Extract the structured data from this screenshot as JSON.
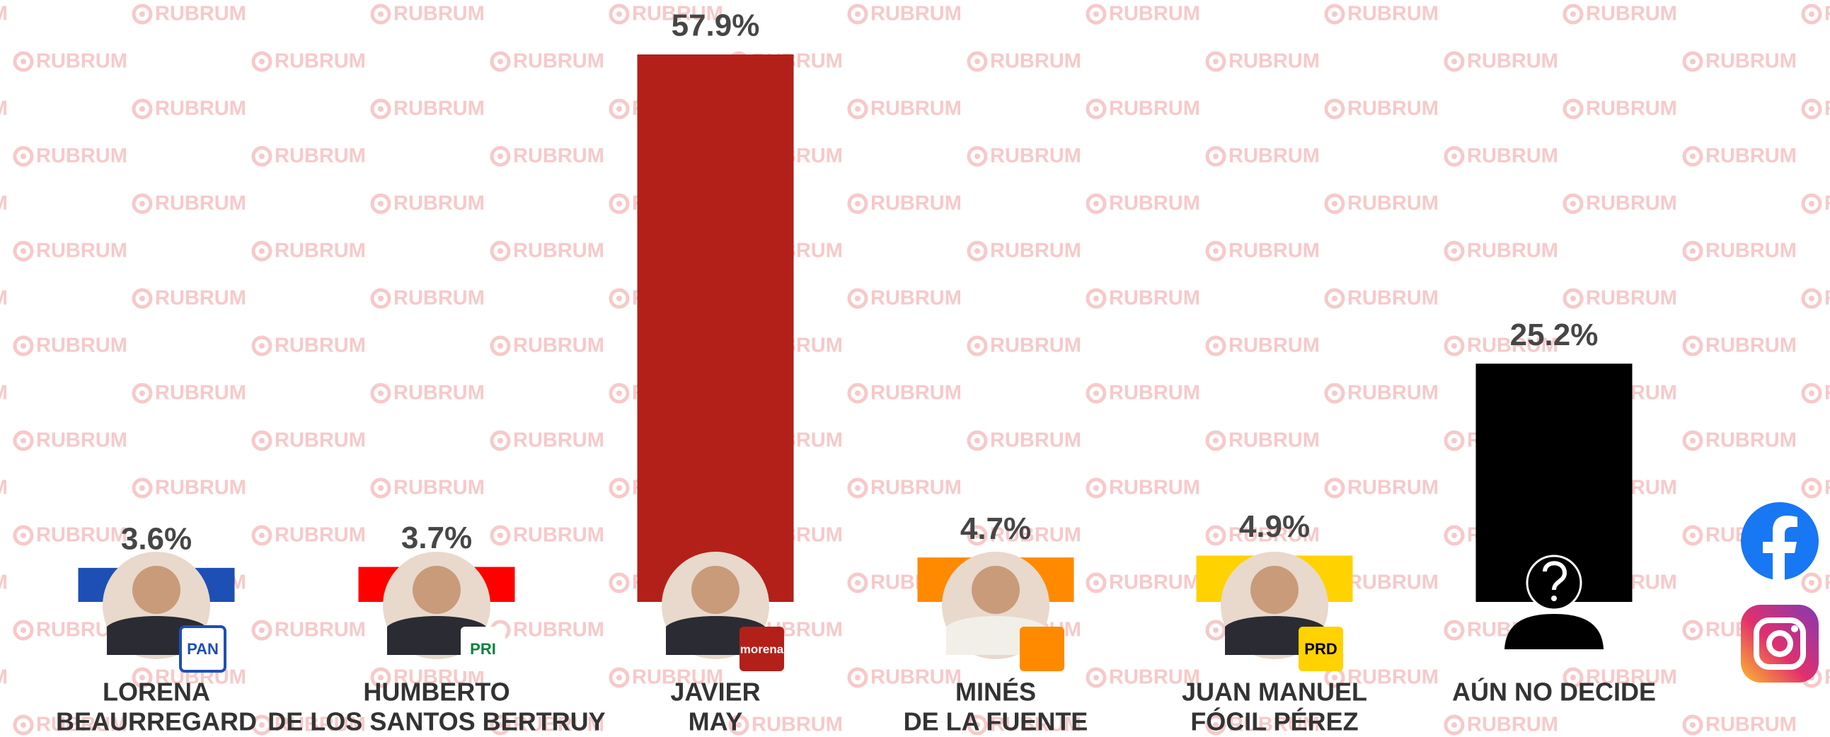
{
  "chart_data": {
    "type": "bar",
    "watermark": "RUBRUM",
    "categories": [
      [
        "LORENA",
        "BEAURREGARD"
      ],
      [
        "HUMBERTO",
        "DE LOS SANTOS BERTRUY"
      ],
      [
        "JAVIER",
        "MAY"
      ],
      [
        "MINÉS",
        "DE LA FUENTE"
      ],
      [
        "JUAN MANUEL",
        "FÓCIL PÉREZ"
      ],
      [
        "AÚN NO DECIDE"
      ]
    ],
    "values": [
      3.6,
      3.7,
      57.9,
      4.7,
      4.9,
      25.2
    ],
    "value_labels": [
      "3.6%",
      "3.7%",
      "57.9%",
      "4.7%",
      "4.9%",
      "25.2%"
    ],
    "colors": [
      "#1e4fb4",
      "#ff0000",
      "#b32019",
      "#ff8a00",
      "#ffd200",
      "#000000"
    ],
    "logos": [
      "PAN",
      "PRI",
      "morena",
      null,
      "PRD",
      null
    ]
  }
}
